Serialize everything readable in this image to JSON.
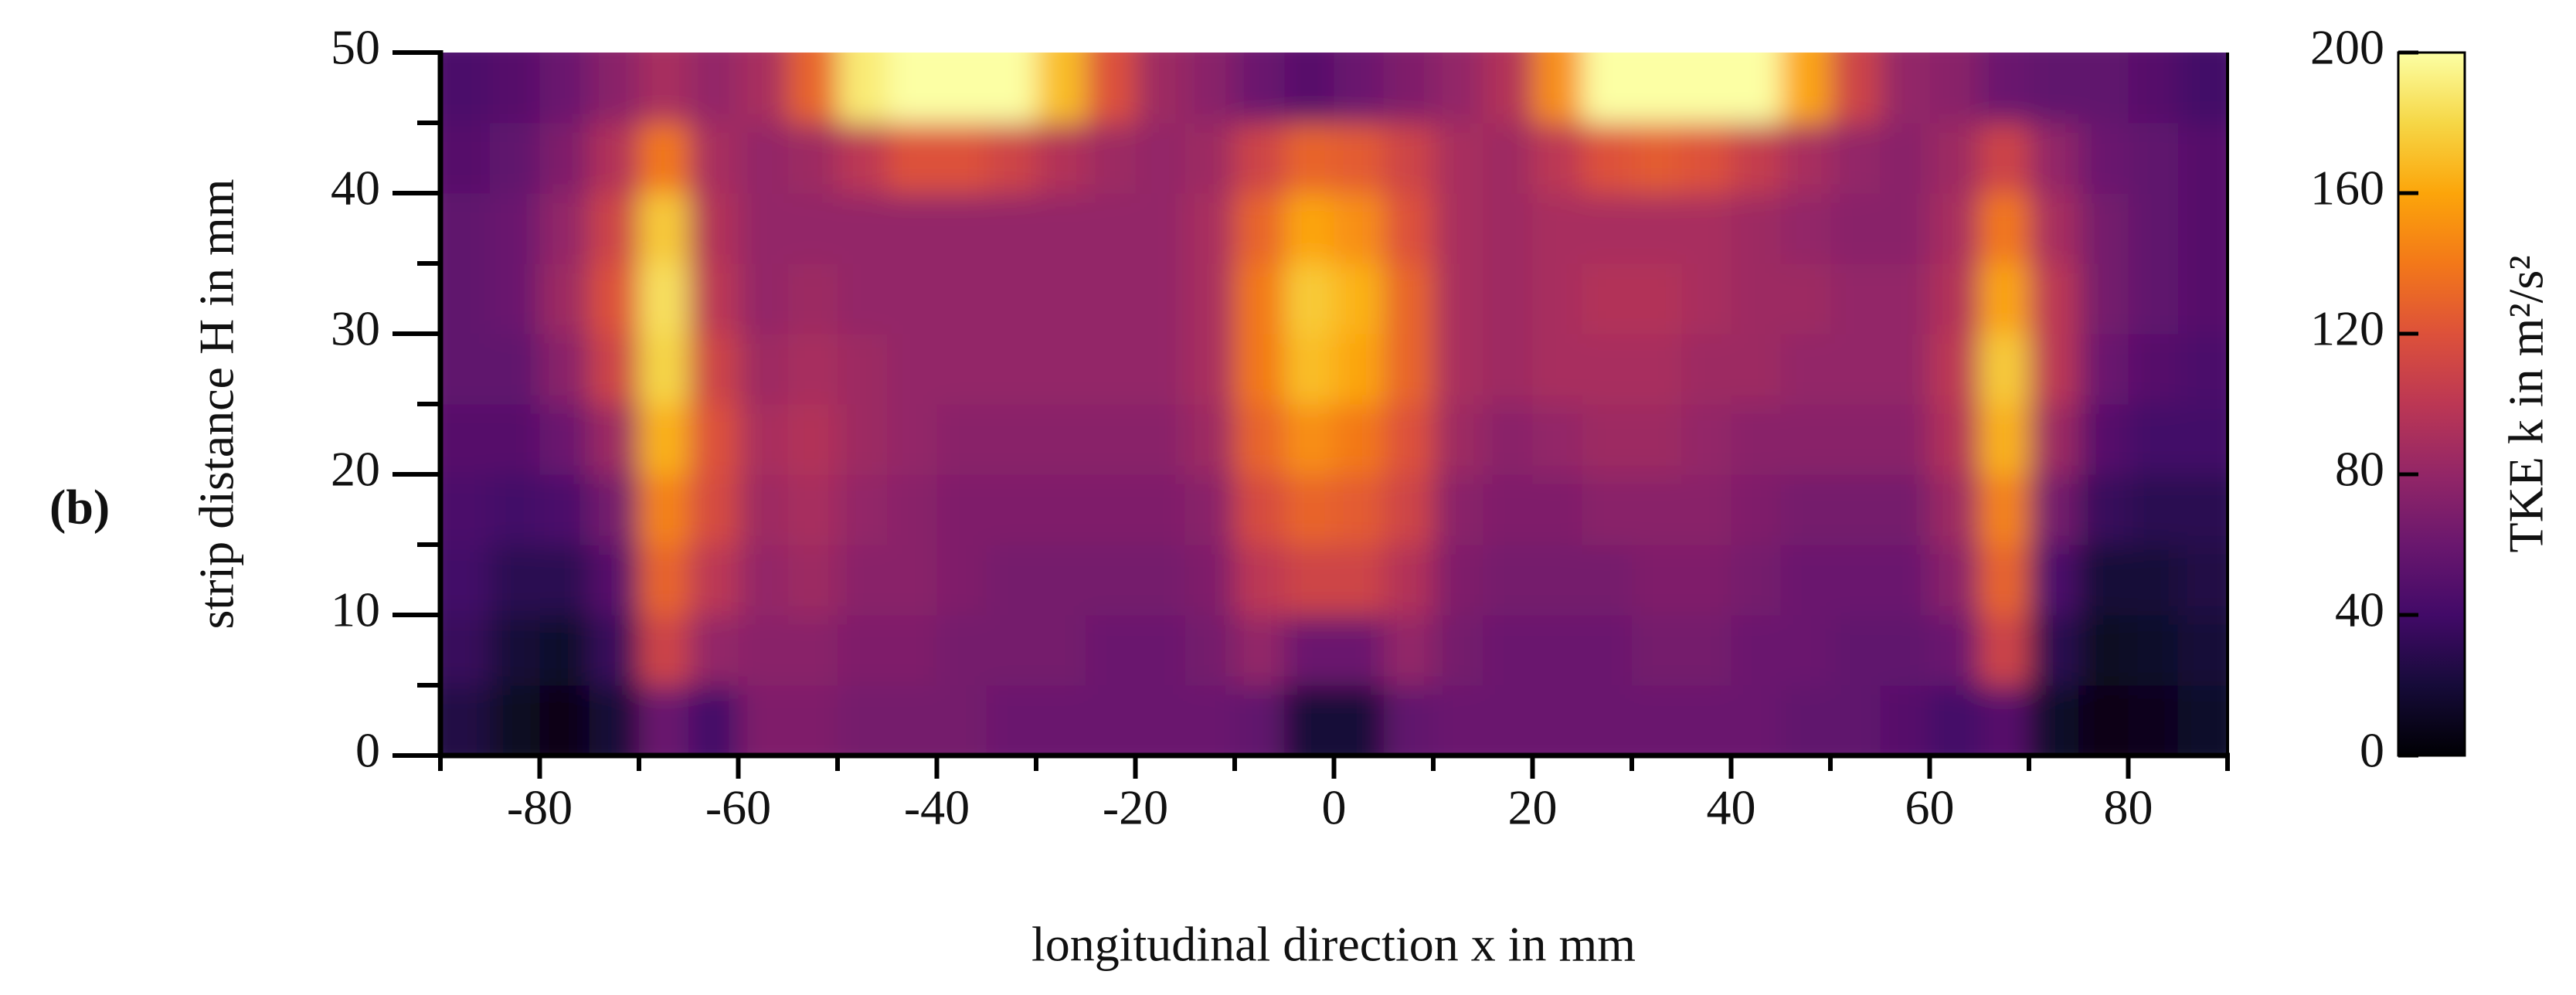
{
  "chart_data": {
    "type": "heatmap",
    "panel_label": "(b)",
    "xlabel": "longitudinal direction x in mm",
    "ylabel": "strip distance H in mm",
    "colorbar_label": "TKE k in m²/s²",
    "colormap": "inferno",
    "xlim": [
      -90,
      90
    ],
    "ylim": [
      0,
      50
    ],
    "xticks": [
      -80,
      -60,
      -40,
      -20,
      0,
      20,
      40,
      60,
      80
    ],
    "xminorticks": [
      -90,
      -70,
      -50,
      -30,
      -10,
      10,
      30,
      50,
      70,
      90
    ],
    "yticks": [
      0,
      10,
      20,
      30,
      40,
      50
    ],
    "yminorticks": [
      5,
      15,
      25,
      35,
      45
    ],
    "clim": [
      0,
      200
    ],
    "cbticks": [
      0,
      40,
      80,
      120,
      160,
      200
    ],
    "x": [
      -87.5,
      -82.5,
      -77.5,
      -72.5,
      -67.5,
      -62.5,
      -57.5,
      -52.5,
      -47.5,
      -42.5,
      -37.5,
      -32.5,
      -27.5,
      -22.5,
      -17.5,
      -12.5,
      -7.5,
      -2.5,
      2.5,
      7.5,
      12.5,
      17.5,
      22.5,
      27.5,
      32.5,
      37.5,
      42.5,
      47.5,
      52.5,
      57.5,
      62.5,
      67.5,
      72.5,
      77.5,
      82.5,
      87.5
    ],
    "y": [
      2.5,
      7.5,
      12.5,
      17.5,
      22.5,
      27.5,
      32.5,
      37.5,
      42.5,
      47.5
    ],
    "z": [
      [
        25,
        12,
        8,
        20,
        60,
        40,
        70,
        70,
        65,
        65,
        65,
        60,
        60,
        60,
        60,
        60,
        55,
        20,
        20,
        55,
        60,
        60,
        60,
        60,
        60,
        60,
        60,
        55,
        55,
        50,
        40,
        50,
        15,
        8,
        10,
        15
      ],
      [
        35,
        20,
        15,
        35,
        110,
        80,
        75,
        75,
        70,
        70,
        65,
        65,
        65,
        60,
        60,
        65,
        80,
        60,
        60,
        80,
        65,
        60,
        60,
        60,
        65,
        65,
        60,
        60,
        55,
        55,
        60,
        110,
        30,
        12,
        15,
        20
      ],
      [
        40,
        30,
        30,
        50,
        130,
        100,
        80,
        85,
        75,
        75,
        70,
        65,
        65,
        65,
        65,
        70,
        100,
        110,
        110,
        95,
        70,
        65,
        65,
        65,
        70,
        70,
        65,
        60,
        60,
        60,
        75,
        130,
        45,
        20,
        20,
        25
      ],
      [
        45,
        40,
        45,
        65,
        145,
        115,
        85,
        90,
        80,
        75,
        70,
        70,
        70,
        70,
        70,
        75,
        115,
        130,
        125,
        110,
        75,
        70,
        70,
        75,
        75,
        75,
        70,
        65,
        65,
        65,
        85,
        145,
        65,
        35,
        30,
        30
      ],
      [
        50,
        50,
        60,
        85,
        165,
        120,
        90,
        95,
        85,
        80,
        75,
        75,
        75,
        75,
        75,
        85,
        130,
        150,
        140,
        120,
        85,
        75,
        80,
        85,
        85,
        80,
        75,
        75,
        75,
        75,
        95,
        165,
        85,
        50,
        40,
        40
      ],
      [
        55,
        55,
        75,
        110,
        180,
        110,
        85,
        90,
        85,
        80,
        80,
        80,
        80,
        80,
        80,
        90,
        140,
        170,
        160,
        130,
        90,
        85,
        90,
        90,
        90,
        85,
        85,
        80,
        80,
        80,
        100,
        175,
        100,
        60,
        50,
        45
      ],
      [
        55,
        60,
        85,
        120,
        185,
        100,
        80,
        85,
        80,
        80,
        80,
        80,
        80,
        80,
        80,
        90,
        140,
        175,
        165,
        130,
        90,
        85,
        90,
        95,
        95,
        90,
        85,
        85,
        80,
        80,
        95,
        160,
        100,
        65,
        55,
        50
      ],
      [
        55,
        60,
        80,
        110,
        175,
        95,
        80,
        80,
        80,
        80,
        80,
        80,
        80,
        80,
        80,
        90,
        130,
        160,
        150,
        120,
        90,
        85,
        90,
        90,
        90,
        90,
        85,
        80,
        75,
        75,
        90,
        140,
        90,
        65,
        55,
        50
      ],
      [
        50,
        55,
        70,
        95,
        140,
        90,
        80,
        85,
        100,
        120,
        120,
        110,
        95,
        85,
        80,
        85,
        110,
        130,
        125,
        110,
        90,
        85,
        100,
        120,
        125,
        120,
        105,
        90,
        80,
        75,
        85,
        110,
        80,
        60,
        55,
        50
      ],
      [
        45,
        50,
        60,
        75,
        90,
        80,
        90,
        130,
        190,
        200,
        200,
        200,
        170,
        120,
        85,
        75,
        60,
        50,
        60,
        70,
        80,
        95,
        150,
        200,
        200,
        200,
        200,
        160,
        110,
        80,
        75,
        60,
        55,
        55,
        50,
        40
      ]
    ]
  }
}
